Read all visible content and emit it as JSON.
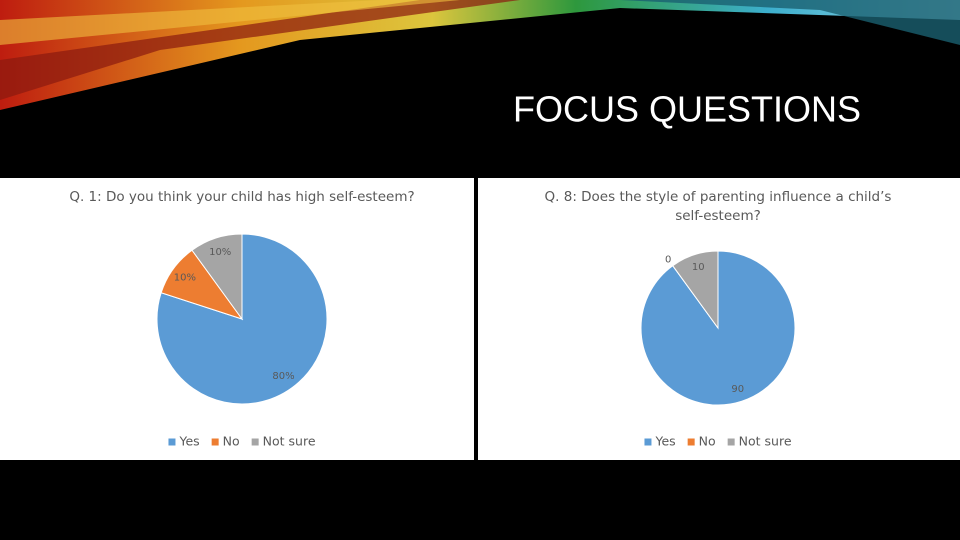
{
  "slide": {
    "title": "FOCUS QUESTIONS"
  },
  "chart_data": [
    {
      "type": "pie",
      "title": "Q. 1: Do you think your child has high self-esteem?",
      "categories": [
        "Yes",
        "No",
        "Not sure"
      ],
      "values": [
        80,
        10,
        10
      ],
      "value_labels": [
        "80%",
        "10%",
        "10%"
      ],
      "colors": [
        "#5b9bd5",
        "#ed7d31",
        "#a5a5a5"
      ],
      "legend": "bottom"
    },
    {
      "type": "pie",
      "title": "Q. 8: Does the style of parenting influence a child’s self-esteem?",
      "categories": [
        "Yes",
        "No",
        "Not sure"
      ],
      "values": [
        90,
        0,
        10
      ],
      "colors": [
        "#5b9bd5",
        "#ed7d31",
        "#a5a5a5"
      ],
      "legend": "bottom"
    }
  ]
}
